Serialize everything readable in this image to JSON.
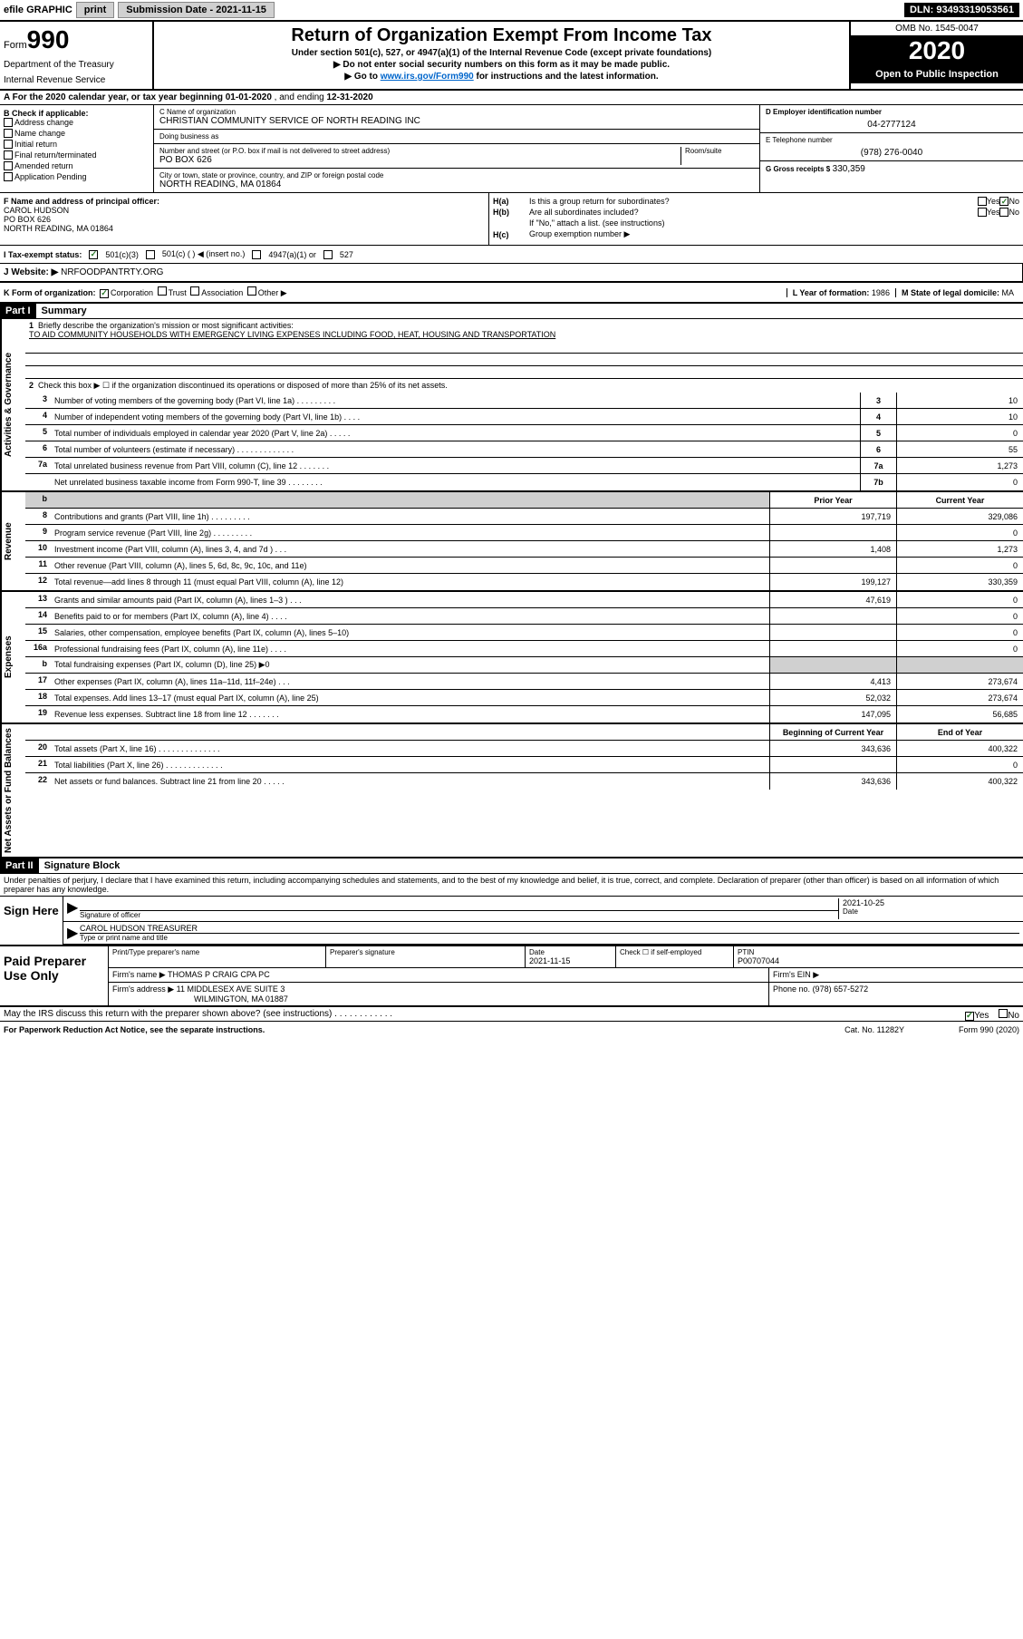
{
  "topbar": {
    "efile": "efile GRAPHIC",
    "print": "print",
    "submission_label": "Submission Date - 2021-11-15",
    "dln": "DLN: 93493319053561"
  },
  "header": {
    "form_label": "Form",
    "form_number": "990",
    "dept1": "Department of the Treasury",
    "dept2": "Internal Revenue Service",
    "title": "Return of Organization Exempt From Income Tax",
    "subtitle": "Under section 501(c), 527, or 4947(a)(1) of the Internal Revenue Code (except private foundations)",
    "instruct1": "▶ Do not enter social security numbers on this form as it may be made public.",
    "instruct2_pre": "▶ Go to ",
    "instruct2_link": "www.irs.gov/Form990",
    "instruct2_post": " for instructions and the latest information.",
    "omb": "OMB No. 1545-0047",
    "year": "2020",
    "inspect": "Open to Public Inspection"
  },
  "row_a": {
    "text_pre": "A For the 2020 calendar year, or tax year beginning ",
    "begin": "01-01-2020",
    "mid": " , and ending ",
    "end": "12-31-2020"
  },
  "block_b": {
    "label": "B Check if applicable:",
    "items": [
      "Address change",
      "Name change",
      "Initial return",
      "Final return/terminated",
      "Amended return",
      "Application Pending"
    ]
  },
  "block_c": {
    "name_label": "C Name of organization",
    "name": "CHRISTIAN COMMUNITY SERVICE OF NORTH READING INC",
    "dba_label": "Doing business as",
    "dba": "",
    "addr_label": "Number and street (or P.O. box if mail is not delivered to street address)",
    "room_label": "Room/suite",
    "addr": "PO BOX 626",
    "city_label": "City or town, state or province, country, and ZIP or foreign postal code",
    "city": "NORTH READING, MA  01864"
  },
  "block_d": {
    "ein_label": "D Employer identification number",
    "ein": "04-2777124",
    "phone_label": "E Telephone number",
    "phone": "(978) 276-0040",
    "gross_label": "G Gross receipts $",
    "gross": "330,359"
  },
  "block_f": {
    "label": "F  Name and address of principal officer:",
    "name": "CAROL HUDSON",
    "addr1": "PO BOX 626",
    "addr2": "NORTH READING, MA  01864"
  },
  "block_h": {
    "ha_label": "H(a)",
    "ha_text": "Is this a group return for subordinates?",
    "hb_label": "H(b)",
    "hb_text": "Are all subordinates included?",
    "hb_note": "If \"No,\" attach a list. (see instructions)",
    "hc_label": "H(c)",
    "hc_text": "Group exemption number ▶",
    "yes": "Yes",
    "no": "No"
  },
  "row_i": {
    "label": "I  Tax-exempt status:",
    "opt1": "501(c)(3)",
    "opt2": "501(c) (   ) ◀ (insert no.)",
    "opt3": "4947(a)(1) or",
    "opt4": "527"
  },
  "row_j": {
    "label": "J  Website: ▶",
    "value": "NRFOODPANTRTY.ORG"
  },
  "row_k": {
    "label": "K Form of organization:",
    "opts": [
      "Corporation",
      "Trust",
      "Association",
      "Other ▶"
    ],
    "l_label": "L Year of formation:",
    "l_value": "1986",
    "m_label": "M State of legal domicile:",
    "m_value": "MA"
  },
  "part1": {
    "header": "Part I",
    "title": "Summary",
    "line1_label": "1",
    "line1_desc": "Briefly describe the organization's mission or most significant activities:",
    "line1_text": "TO AID COMMUNITY HOUSEHOLDS WITH EMERGENCY LIVING EXPENSES INCLUDING FOOD, HEAT, HOUSING AND TRANSPORTATION",
    "line2_label": "2",
    "line2_desc": "Check this box ▶ ☐  if the organization discontinued its operations or disposed of more than 25% of its net assets.",
    "sidelabel_gov": "Activities & Governance",
    "sidelabel_rev": "Revenue",
    "sidelabel_exp": "Expenses",
    "sidelabel_net": "Net Assets or Fund Balances",
    "prior_year": "Prior Year",
    "current_year": "Current Year",
    "begin_year": "Beginning of Current Year",
    "end_year": "End of Year",
    "lines_gov": [
      {
        "n": "3",
        "desc": "Number of voting members of the governing body (Part VI, line 1a)  .  .  .  .  .  .  .  .  .",
        "cell": "3",
        "v": "10"
      },
      {
        "n": "4",
        "desc": "Number of independent voting members of the governing body (Part VI, line 1b)  .  .  .  .",
        "cell": "4",
        "v": "10"
      },
      {
        "n": "5",
        "desc": "Total number of individuals employed in calendar year 2020 (Part V, line 2a)  .  .  .  .  .",
        "cell": "5",
        "v": "0"
      },
      {
        "n": "6",
        "desc": "Total number of volunteers (estimate if necessary)  .  .  .  .  .  .  .  .  .  .  .  .  .",
        "cell": "6",
        "v": "55"
      },
      {
        "n": "7a",
        "desc": "Total unrelated business revenue from Part VIII, column (C), line 12  .  .  .  .  .  .  .",
        "cell": "7a",
        "v": "1,273"
      },
      {
        "n": "",
        "desc": "Net unrelated business taxable income from Form 990-T, line 39  .  .  .  .  .  .  .  .",
        "cell": "7b",
        "v": "0"
      }
    ],
    "lines_rev": [
      {
        "n": "8",
        "desc": "Contributions and grants (Part VIII, line 1h)  .  .  .  .  .  .  .  .  .",
        "p": "197,719",
        "c": "329,086"
      },
      {
        "n": "9",
        "desc": "Program service revenue (Part VIII, line 2g)  .  .  .  .  .  .  .  .  .",
        "p": "",
        "c": "0"
      },
      {
        "n": "10",
        "desc": "Investment income (Part VIII, column (A), lines 3, 4, and 7d )  .  .  .",
        "p": "1,408",
        "c": "1,273"
      },
      {
        "n": "11",
        "desc": "Other revenue (Part VIII, column (A), lines 5, 6d, 8c, 9c, 10c, and 11e)",
        "p": "",
        "c": "0"
      },
      {
        "n": "12",
        "desc": "Total revenue—add lines 8 through 11 (must equal Part VIII, column (A), line 12)",
        "p": "199,127",
        "c": "330,359"
      }
    ],
    "lines_exp": [
      {
        "n": "13",
        "desc": "Grants and similar amounts paid (Part IX, column (A), lines 1–3 )  .  .  .",
        "p": "47,619",
        "c": "0"
      },
      {
        "n": "14",
        "desc": "Benefits paid to or for members (Part IX, column (A), line 4)  .  .  .  .",
        "p": "",
        "c": "0"
      },
      {
        "n": "15",
        "desc": "Salaries, other compensation, employee benefits (Part IX, column (A), lines 5–10)",
        "p": "",
        "c": "0"
      },
      {
        "n": "16a",
        "desc": "Professional fundraising fees (Part IX, column (A), line 11e)  .  .  .  .",
        "p": "",
        "c": "0"
      },
      {
        "n": "b",
        "desc": "Total fundraising expenses (Part IX, column (D), line 25) ▶0",
        "p": "",
        "c": "",
        "shade": true
      },
      {
        "n": "17",
        "desc": "Other expenses (Part IX, column (A), lines 11a–11d, 11f–24e)  .  .  .",
        "p": "4,413",
        "c": "273,674"
      },
      {
        "n": "18",
        "desc": "Total expenses. Add lines 13–17 (must equal Part IX, column (A), line 25)",
        "p": "52,032",
        "c": "273,674"
      },
      {
        "n": "19",
        "desc": "Revenue less expenses. Subtract line 18 from line 12  .  .  .  .  .  .  .",
        "p": "147,095",
        "c": "56,685"
      }
    ],
    "lines_net": [
      {
        "n": "20",
        "desc": "Total assets (Part X, line 16)  .  .  .  .  .  .  .  .  .  .  .  .  .  .",
        "p": "343,636",
        "c": "400,322"
      },
      {
        "n": "21",
        "desc": "Total liabilities (Part X, line 26)  .  .  .  .  .  .  .  .  .  .  .  .  .",
        "p": "",
        "c": "0"
      },
      {
        "n": "22",
        "desc": "Net assets or fund balances. Subtract line 21 from line 20  .  .  .  .  .",
        "p": "343,636",
        "c": "400,322"
      }
    ]
  },
  "part2": {
    "header": "Part II",
    "title": "Signature Block",
    "penalty": "Under penalties of perjury, I declare that I have examined this return, including accompanying schedules and statements, and to the best of my knowledge and belief, it is true, correct, and complete. Declaration of preparer (other than officer) is based on all information of which preparer has any knowledge.",
    "sign_here": "Sign Here",
    "sig_officer": "Signature of officer",
    "sig_date": "2021-10-25",
    "date_label": "Date",
    "officer_name": "CAROL HUDSON TREASURER",
    "type_name": "Type or print name and title",
    "paid_prep": "Paid Preparer Use Only",
    "prep_name_label": "Print/Type preparer's name",
    "prep_sig_label": "Preparer's signature",
    "prep_date_label": "Date",
    "prep_date": "2021-11-15",
    "check_self": "Check ☐ if self-employed",
    "ptin_label": "PTIN",
    "ptin": "P00707044",
    "firm_name_label": "Firm's name    ▶",
    "firm_name": "THOMAS P CRAIG CPA PC",
    "firm_ein_label": "Firm's EIN ▶",
    "firm_addr_label": "Firm's address ▶",
    "firm_addr1": "11 MIDDLESEX AVE SUITE 3",
    "firm_addr2": "WILMINGTON, MA  01887",
    "firm_phone_label": "Phone no.",
    "firm_phone": "(978) 657-5272",
    "discuss": "May the IRS discuss this return with the preparer shown above? (see instructions)  .  .  .  .  .  .  .  .  .  .  .  .",
    "yes": "Yes",
    "no": "No"
  },
  "footer": {
    "left": "For Paperwork Reduction Act Notice, see the separate instructions.",
    "mid": "Cat. No. 11282Y",
    "right": "Form 990 (2020)"
  }
}
